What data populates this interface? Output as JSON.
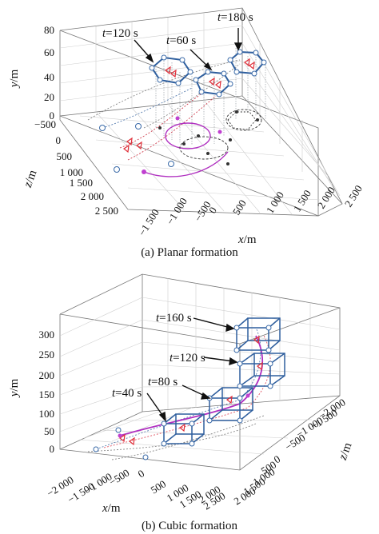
{
  "chart_data": [
    {
      "type": "scatter",
      "dimension": "3d",
      "caption": "(a) Planar formation",
      "xlabel": "x/m",
      "ylabel": "y/m",
      "zlabel": "z/m",
      "xticks": [
        "−1 500",
        "−1 000",
        "−500",
        "0",
        "500",
        "1 000",
        "1 500",
        "2 000",
        "2 500"
      ],
      "yticks": [
        "0",
        "20",
        "40",
        "60",
        "80"
      ],
      "zticks": [
        "−500",
        "0",
        "500",
        "1 000",
        "1 500",
        "2 000",
        "2 500"
      ],
      "xlim": [
        -1500,
        2500
      ],
      "ylim": [
        0,
        80
      ],
      "zlim": [
        -500,
        2500
      ],
      "grid": true,
      "annotations": [
        {
          "t_italic": "t",
          "rest": "=120 s"
        },
        {
          "t_italic": "t",
          "rest": "=60 s"
        },
        {
          "t_italic": "t",
          "rest": "=180 s"
        }
      ],
      "series": [
        {
          "kind": "formation",
          "color": "#3a6aa8",
          "marker": "hexagram",
          "snapshots": [
            {
              "x": -300,
              "y": 50,
              "z": 600
            },
            {
              "x": 500,
              "y": 45,
              "z": 500
            },
            {
              "x": 1500,
              "y": 60,
              "z": 500
            }
          ]
        },
        {
          "kind": "targets",
          "color": "#e0303a",
          "marker": "triangle"
        },
        {
          "kind": "leader-track",
          "color": "#b030c0",
          "marker": "pentagram"
        },
        {
          "kind": "obstacle-track",
          "color": "#222222",
          "marker": "dot"
        }
      ]
    },
    {
      "type": "scatter",
      "dimension": "3d",
      "caption": "(b) Cubic formation",
      "xlabel": "x/m",
      "ylabel": "y/m",
      "zlabel": "z/m",
      "xticks": [
        "−2 000",
        "−1 500",
        "−1 000",
        "−500",
        "0",
        "500",
        "1 000",
        "1 500",
        "2 000",
        "2 500"
      ],
      "yticks": [
        "0",
        "50",
        "100",
        "150",
        "200",
        "250",
        "300"
      ],
      "zticks": [
        "−2 000",
        "−1 500",
        "−1 000",
        "−500",
        "0",
        "500",
        "1 000",
        "1 500",
        "2 000"
      ],
      "xlim": [
        -2000,
        2500
      ],
      "ylim": [
        0,
        300
      ],
      "zlim": [
        -2000,
        2000
      ],
      "grid": true,
      "annotations": [
        {
          "t_italic": "t",
          "rest": "=160 s"
        },
        {
          "t_italic": "t",
          "rest": "=120 s"
        },
        {
          "t_italic": "t",
          "rest": "=80 s"
        },
        {
          "t_italic": "t",
          "rest": "=40 s"
        }
      ],
      "series": [
        {
          "kind": "formation",
          "color": "#3a6aa8",
          "marker": "hexagram"
        },
        {
          "kind": "targets",
          "color": "#e0303a",
          "marker": "triangle"
        },
        {
          "kind": "leader-track",
          "color": "#b030c0",
          "marker": "pentagram"
        }
      ]
    }
  ]
}
